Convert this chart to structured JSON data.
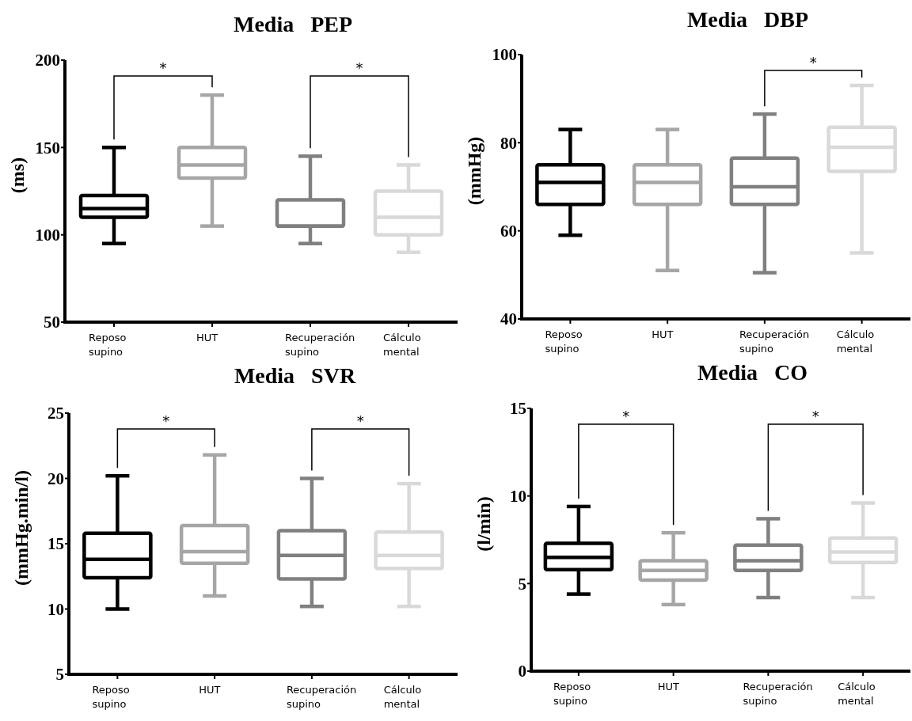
{
  "chart_data": [
    {
      "type": "box",
      "title": "Media   PEP",
      "ylabel": "(ms)",
      "categories": [
        "Reposo supino",
        "HUT",
        "Recuperación supino",
        "Cálculo mental"
      ],
      "colors": [
        "#000000",
        "#a6a6a6",
        "#808080",
        "#d9d9d9"
      ],
      "ylim": [
        50,
        200
      ],
      "yticks": [
        50,
        100,
        150,
        200
      ],
      "annotations": [
        "*",
        "*"
      ],
      "boxes": [
        {
          "low": 95,
          "q1": 110,
          "median": 115,
          "q3": 122.5,
          "high": 150
        },
        {
          "low": 105,
          "q1": 132.5,
          "median": 140,
          "q3": 150,
          "high": 180
        },
        {
          "low": 95,
          "q1": 105,
          "median": 105,
          "q3": 120,
          "high": 145
        },
        {
          "low": 90,
          "q1": 100,
          "median": 110,
          "q3": 125,
          "high": 140
        }
      ]
    },
    {
      "type": "box",
      "title": "Media   DBP",
      "ylabel": "(mmHg)",
      "categories": [
        "Reposo supino",
        "HUT",
        "Recuperación supino",
        "Cálculo mental"
      ],
      "colors": [
        "#000000",
        "#a6a6a6",
        "#808080",
        "#d9d9d9"
      ],
      "ylim": [
        40,
        100
      ],
      "yticks": [
        40,
        60,
        80,
        100
      ],
      "annotations": [
        "*"
      ],
      "boxes": [
        {
          "low": 59,
          "q1": 66,
          "median": 71,
          "q3": 75,
          "high": 83
        },
        {
          "low": 51,
          "q1": 66,
          "median": 71,
          "q3": 75,
          "high": 83
        },
        {
          "low": 50.5,
          "q1": 66,
          "median": 70,
          "q3": 76.5,
          "high": 86.5
        },
        {
          "low": 55,
          "q1": 73.5,
          "median": 79,
          "q3": 83.5,
          "high": 93
        }
      ]
    },
    {
      "type": "box",
      "title": "Media   SVR",
      "ylabel": "(mmHg.min/l)",
      "categories": [
        "Reposo supino",
        "HUT",
        "Recuperación supino",
        "Cálculo mental"
      ],
      "colors": [
        "#000000",
        "#a6a6a6",
        "#808080",
        "#d9d9d9"
      ],
      "ylim": [
        5,
        25
      ],
      "yticks": [
        5,
        10,
        15,
        20,
        25
      ],
      "annotations": [
        "*",
        "*"
      ],
      "boxes": [
        {
          "low": 10,
          "q1": 12.4,
          "median": 13.8,
          "q3": 15.8,
          "high": 20.2
        },
        {
          "low": 11,
          "q1": 13.5,
          "median": 14.4,
          "q3": 16.4,
          "high": 21.8
        },
        {
          "low": 10.2,
          "q1": 12.3,
          "median": 14.1,
          "q3": 16,
          "high": 20
        },
        {
          "low": 10.2,
          "q1": 13.1,
          "median": 14.1,
          "q3": 15.9,
          "high": 19.6
        }
      ]
    },
    {
      "type": "box",
      "title": "Media   CO",
      "ylabel": "(l/min)",
      "categories": [
        "Reposo supino",
        "HUT",
        "Recuperación supino",
        "Cálculo mental"
      ],
      "colors": [
        "#000000",
        "#a6a6a6",
        "#808080",
        "#d9d9d9"
      ],
      "ylim": [
        0,
        15
      ],
      "yticks": [
        0,
        5,
        10,
        15
      ],
      "annotations": [
        "*",
        "*"
      ],
      "boxes": [
        {
          "low": 4.4,
          "q1": 5.8,
          "median": 6.5,
          "q3": 7.3,
          "high": 9.4
        },
        {
          "low": 3.8,
          "q1": 5.2,
          "median": 5.75,
          "q3": 6.3,
          "high": 7.9
        },
        {
          "low": 4.2,
          "q1": 5.75,
          "median": 6.3,
          "q3": 7.2,
          "high": 8.7
        },
        {
          "low": 4.2,
          "q1": 6.2,
          "median": 6.8,
          "q3": 7.6,
          "high": 9.6
        }
      ]
    }
  ]
}
